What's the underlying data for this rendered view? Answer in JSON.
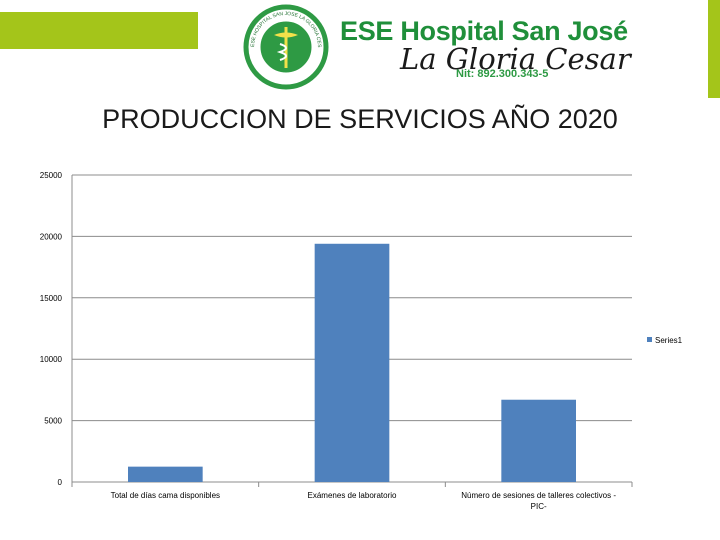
{
  "header": {
    "logo_title": "ESE Hospital San José",
    "logo_script": "La Gloria Cesar",
    "logo_nit": "Nit: 892.300.343-5",
    "seal_text": "ESE HOSPITAL SAN JOSE LA GLORIA CESAR"
  },
  "colors": {
    "accent_green": "#a4c51a",
    "brand_green": "#1f8f3a",
    "bar": "#4f81bd"
  },
  "chart_data": {
    "type": "bar",
    "title": "PRODUCCION DE SERVICIOS AÑO 2020",
    "categories": [
      [
        "Total de días cama disponibles"
      ],
      [
        "Exámenes de laboratorio"
      ],
      [
        "Número de sesiones de talleres colectivos -",
        "PIC-"
      ]
    ],
    "series": [
      {
        "name": "Series1",
        "values": [
          1250,
          19400,
          6700
        ]
      }
    ],
    "ylim": [
      0,
      25000
    ],
    "yticks": [
      0,
      5000,
      10000,
      15000,
      20000,
      25000
    ],
    "grid": true,
    "legend": "right"
  }
}
